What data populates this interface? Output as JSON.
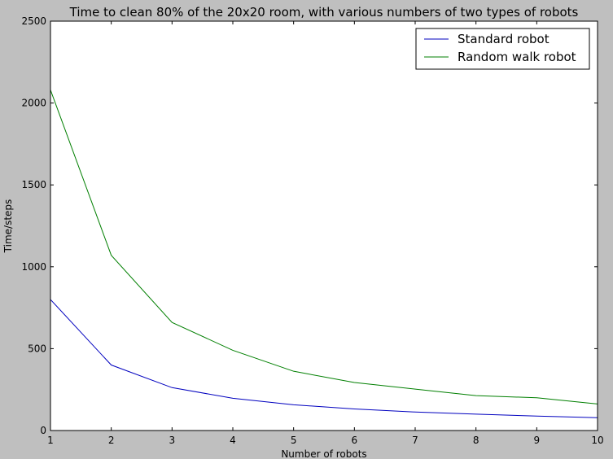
{
  "chart_data": {
    "type": "line",
    "title": "Time to clean 80% of the 20x20 room, with various numbers of two types of robots",
    "xlabel": "Number of robots",
    "ylabel": "Time/steps",
    "xlim": [
      1,
      10
    ],
    "ylim": [
      0,
      2500
    ],
    "x": [
      1,
      2,
      3,
      4,
      5,
      6,
      7,
      8,
      9,
      10
    ],
    "xticks": [
      "1",
      "2",
      "3",
      "4",
      "5",
      "6",
      "7",
      "8",
      "9",
      "10"
    ],
    "yticks": [
      "0",
      "500",
      "1000",
      "1500",
      "2000",
      "2500"
    ],
    "grid": false,
    "legend_position": "top-right",
    "series": [
      {
        "name": "Standard robot",
        "color": "#0000bf",
        "values": [
          800,
          400,
          262,
          197,
          157,
          132,
          113,
          100,
          88,
          78
        ]
      },
      {
        "name": "Random walk robot",
        "color": "#007f00",
        "values": [
          2080,
          1070,
          660,
          490,
          362,
          293,
          253,
          213,
          200,
          162
        ]
      }
    ]
  }
}
